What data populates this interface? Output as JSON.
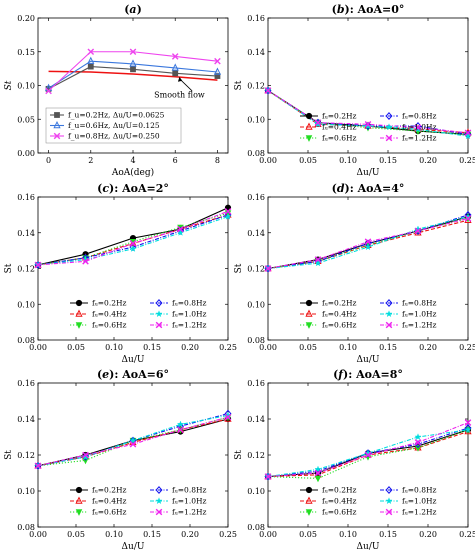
{
  "chart_data": [
    {
      "panel": "a",
      "type": "line",
      "title": "(a)",
      "xlabel": "AoA(deg)",
      "ylabel": "St",
      "xlim": [
        -0.5,
        8.5
      ],
      "ylim": [
        0,
        0.2
      ],
      "xticks": [
        0,
        2,
        4,
        6,
        8
      ],
      "yticks": [
        0,
        0.05,
        0.1,
        0.15,
        0.2
      ],
      "x": [
        0,
        2,
        4,
        6,
        8
      ],
      "legend_position": "lower-left",
      "annotation": "Smooth flow",
      "smooth_flow": {
        "name": "Smooth flow",
        "x": [
          0,
          2,
          4,
          6,
          8
        ],
        "values": [
          0.121,
          0.12,
          0.117,
          0.113,
          0.108
        ],
        "color": "#ee1111"
      },
      "series": [
        {
          "name": "f_u=0.2Hz, Δu/U=0.0625",
          "values": [
            0.095,
            0.128,
            0.124,
            0.118,
            0.114
          ],
          "color": "#555555",
          "marker": "square"
        },
        {
          "name": "f_u=0.6Hz, Δu/U=0.125",
          "values": [
            0.096,
            0.136,
            0.132,
            0.126,
            0.12
          ],
          "color": "#3a77dd",
          "marker": "triangle-open"
        },
        {
          "name": "f_u=0.8Hz, Δu/U=0.250",
          "values": [
            0.092,
            0.15,
            0.15,
            0.143,
            0.136
          ],
          "color": "#ee44ee",
          "marker": "x"
        }
      ]
    },
    {
      "panel": "b",
      "type": "line",
      "title": "(b): AoA=0°",
      "xlabel": "Δu/U",
      "ylabel": "St",
      "xlim": [
        0,
        0.25
      ],
      "ylim": [
        0.08,
        0.16
      ],
      "x": [
        0,
        0.0625,
        0.125,
        0.1875,
        0.25
      ],
      "series": [
        {
          "name": "f_u=0.2Hz",
          "values": [
            0.117,
            0.098,
            0.096,
            0.093,
            0.091
          ]
        },
        {
          "name": "f_u=0.4Hz",
          "values": [
            0.117,
            0.097,
            0.096,
            0.094,
            0.092
          ]
        },
        {
          "name": "f_u=0.6Hz",
          "values": [
            0.117,
            0.098,
            0.095,
            0.093,
            0.091
          ]
        },
        {
          "name": "f_u=0.8Hz",
          "values": [
            0.117,
            0.098,
            0.096,
            0.096,
            0.091
          ]
        },
        {
          "name": "f_u=1.0Hz",
          "values": [
            0.117,
            0.097,
            0.096,
            0.094,
            0.09
          ]
        },
        {
          "name": "f_u=1.2Hz",
          "values": [
            0.117,
            0.098,
            0.097,
            0.095,
            0.092
          ]
        }
      ]
    },
    {
      "panel": "c",
      "type": "line",
      "title": "(c): AoA=2°",
      "xlabel": "Δu/U",
      "ylabel": "St",
      "xlim": [
        0,
        0.25
      ],
      "ylim": [
        0.08,
        0.16
      ],
      "x": [
        0,
        0.0625,
        0.125,
        0.1875,
        0.25
      ],
      "series": [
        {
          "name": "f_u=0.2Hz",
          "values": [
            0.122,
            0.128,
            0.137,
            0.142,
            0.154
          ]
        },
        {
          "name": "f_u=0.4Hz",
          "values": [
            0.122,
            0.126,
            0.134,
            0.142,
            0.15
          ]
        },
        {
          "name": "f_u=0.6Hz",
          "values": [
            0.122,
            0.126,
            0.135,
            0.143,
            0.151
          ]
        },
        {
          "name": "f_u=0.8Hz",
          "values": [
            0.122,
            0.126,
            0.132,
            0.141,
            0.15
          ]
        },
        {
          "name": "f_u=1.0Hz",
          "values": [
            0.122,
            0.125,
            0.131,
            0.14,
            0.149
          ]
        },
        {
          "name": "f_u=1.2Hz",
          "values": [
            0.122,
            0.124,
            0.134,
            0.142,
            0.152
          ]
        }
      ]
    },
    {
      "panel": "d",
      "type": "line",
      "title": "(d): AoA=4°",
      "xlabel": "Δu/U",
      "ylabel": "St",
      "xlim": [
        0,
        0.25
      ],
      "ylim": [
        0.08,
        0.16
      ],
      "x": [
        0,
        0.0625,
        0.125,
        0.1875,
        0.25
      ],
      "series": [
        {
          "name": "f_u=0.2Hz",
          "values": [
            0.12,
            0.125,
            0.134,
            0.141,
            0.149
          ]
        },
        {
          "name": "f_u=0.4Hz",
          "values": [
            0.12,
            0.124,
            0.133,
            0.14,
            0.147
          ]
        },
        {
          "name": "f_u=0.6Hz",
          "values": [
            0.12,
            0.124,
            0.133,
            0.141,
            0.148
          ]
        },
        {
          "name": "f_u=0.8Hz",
          "values": [
            0.12,
            0.124,
            0.134,
            0.141,
            0.15
          ]
        },
        {
          "name": "f_u=1.0Hz",
          "values": [
            0.12,
            0.123,
            0.132,
            0.142,
            0.149
          ]
        },
        {
          "name": "f_u=1.2Hz",
          "values": [
            0.12,
            0.125,
            0.135,
            0.141,
            0.148
          ]
        }
      ]
    },
    {
      "panel": "e",
      "type": "line",
      "title": "(e): AoA=6°",
      "xlabel": "Δu/U",
      "ylabel": "St",
      "xlim": [
        0,
        0.25
      ],
      "ylim": [
        0.08,
        0.16
      ],
      "x": [
        0,
        0.0625,
        0.125,
        0.1875,
        0.25
      ],
      "series": [
        {
          "name": "f_u=0.2Hz",
          "values": [
            0.114,
            0.12,
            0.128,
            0.133,
            0.14
          ]
        },
        {
          "name": "f_u=0.4Hz",
          "values": [
            0.114,
            0.119,
            0.127,
            0.134,
            0.14
          ]
        },
        {
          "name": "f_u=0.6Hz",
          "values": [
            0.114,
            0.117,
            0.128,
            0.134,
            0.141
          ]
        },
        {
          "name": "f_u=0.8Hz",
          "values": [
            0.114,
            0.119,
            0.128,
            0.136,
            0.143
          ]
        },
        {
          "name": "f_u=1.0Hz",
          "values": [
            0.114,
            0.119,
            0.128,
            0.137,
            0.142
          ]
        },
        {
          "name": "f_u=1.2Hz",
          "values": [
            0.114,
            0.12,
            0.126,
            0.134,
            0.141
          ]
        }
      ]
    },
    {
      "panel": "f",
      "type": "line",
      "title": "(f): AoA=8°",
      "xlabel": "Δu/U",
      "ylabel": "St",
      "xlim": [
        0,
        0.25
      ],
      "ylim": [
        0.08,
        0.16
      ],
      "x": [
        0,
        0.0625,
        0.125,
        0.1875,
        0.25
      ],
      "series": [
        {
          "name": "f_u=0.2Hz",
          "values": [
            0.108,
            0.11,
            0.121,
            0.125,
            0.134
          ]
        },
        {
          "name": "f_u=0.4Hz",
          "values": [
            0.108,
            0.109,
            0.12,
            0.124,
            0.133
          ]
        },
        {
          "name": "f_u=0.6Hz",
          "values": [
            0.108,
            0.107,
            0.119,
            0.124,
            0.134
          ]
        },
        {
          "name": "f_u=0.8Hz",
          "values": [
            0.108,
            0.111,
            0.121,
            0.126,
            0.135
          ]
        },
        {
          "name": "f_u=1.0Hz",
          "values": [
            0.108,
            0.112,
            0.121,
            0.13,
            0.134
          ]
        },
        {
          "name": "f_u=1.2Hz",
          "values": [
            0.108,
            0.11,
            0.12,
            0.127,
            0.138
          ]
        }
      ]
    }
  ],
  "style": {
    "series_colors": [
      "#000000",
      "#ee1111",
      "#22dd22",
      "#1111ee",
      "#00dddd",
      "#ee22ee"
    ],
    "series_dashes": [
      "solid",
      "dashed",
      "dotted",
      "dashdot",
      "dashdot",
      "dashdot"
    ],
    "series_markers": [
      "circle-filled",
      "triangle-open",
      "triangle-down-filled",
      "diamond-open",
      "star",
      "x"
    ]
  }
}
